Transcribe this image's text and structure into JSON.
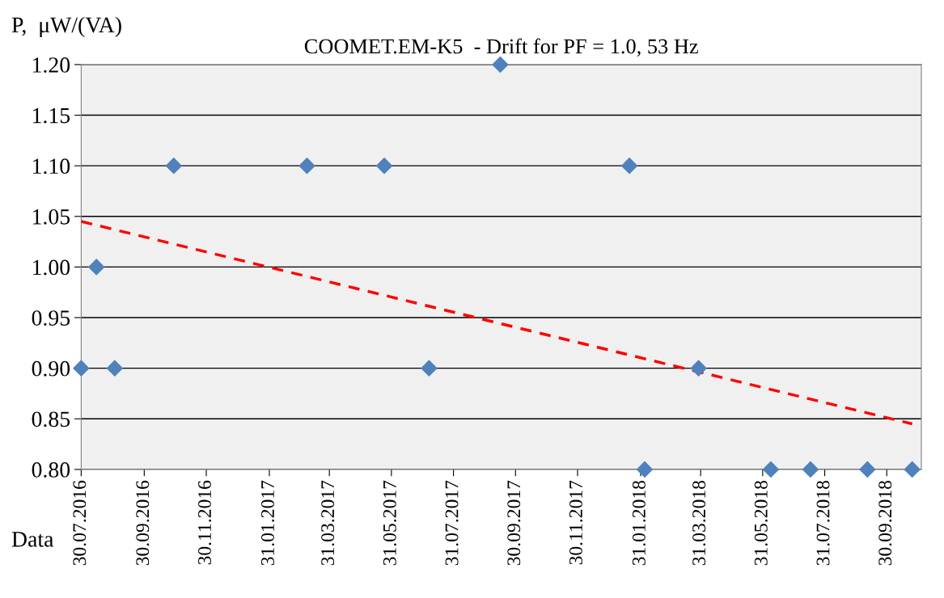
{
  "chart_data": {
    "type": "scatter",
    "title": "COOMET.EM-K5  - Drift for PF = 1.0, 53 Hz",
    "xlabel": "Data",
    "ylabel": "P,  μW/(VA)",
    "x": [
      "2016-07-30",
      "2016-08-14",
      "2016-09-01",
      "2016-10-29",
      "2017-03-09",
      "2017-05-24",
      "2017-07-07",
      "2017-09-15",
      "2018-01-20",
      "2018-02-04",
      "2018-03-29",
      "2018-06-08",
      "2018-07-17",
      "2018-09-11",
      "2018-10-25"
    ],
    "series": [
      {
        "color": "#4f81bd",
        "marker": "diamond",
        "values": [
          0.9,
          1.0,
          0.9,
          1.1,
          1.1,
          1.1,
          0.9,
          1.2,
          1.1,
          0.8,
          0.9,
          0.8,
          0.8,
          0.8,
          0.8
        ]
      },
      {
        "type": "line",
        "color": "#ff0000",
        "line_style": "dashed",
        "marker": "none",
        "x": [
          "2016-07-30",
          "2018-10-25"
        ],
        "values": [
          1.045,
          0.845
        ]
      }
    ],
    "xlim": [
      "2016-07-30",
      "2018-11-03"
    ],
    "xticks": [
      {
        "value": "2016-07-30",
        "label": "30.07.2016"
      },
      {
        "value": "2016-09-30",
        "label": "30.09.2016"
      },
      {
        "value": "2016-11-30",
        "label": "30.11.2016"
      },
      {
        "value": "2017-01-31",
        "label": "31.01.2017"
      },
      {
        "value": "2017-03-31",
        "label": "31.03.2017"
      },
      {
        "value": "2017-05-31",
        "label": "31.05.2017"
      },
      {
        "value": "2017-07-31",
        "label": "31.07.2017"
      },
      {
        "value": "2017-09-30",
        "label": "30.09.2017"
      },
      {
        "value": "2017-11-30",
        "label": "30.11.2017"
      },
      {
        "value": "2018-01-31",
        "label": "31.01.2018"
      },
      {
        "value": "2018-03-31",
        "label": "31.03.2018"
      },
      {
        "value": "2018-05-31",
        "label": "31.05.2018"
      },
      {
        "value": "2018-07-31",
        "label": "31.07.2018"
      },
      {
        "value": "2018-09-30",
        "label": "30.09.2018"
      }
    ],
    "ylim": [
      0.8,
      1.2
    ],
    "yticks": [
      {
        "value": 0.8,
        "label": "0.80"
      },
      {
        "value": 0.85,
        "label": "0.85"
      },
      {
        "value": 0.9,
        "label": "0.90"
      },
      {
        "value": 0.95,
        "label": "0.95"
      },
      {
        "value": 1.0,
        "label": "1.00"
      },
      {
        "value": 1.05,
        "label": "1.05"
      },
      {
        "value": 1.1,
        "label": "1.10"
      },
      {
        "value": 1.15,
        "label": "1.15"
      },
      {
        "value": 1.2,
        "label": "1.20"
      }
    ],
    "grid": "y",
    "legend": false
  }
}
